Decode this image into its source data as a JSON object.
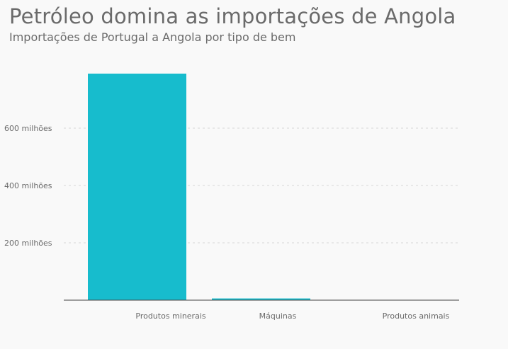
{
  "header": {
    "title": "Petróleo domina as importações de Angola",
    "subtitle": "Importações de Portugal a Angola por tipo de bem"
  },
  "colors": {
    "bar": "#17bccd",
    "grid": "#d8d8d8",
    "axis": "#444444",
    "text": "#6a6a6a",
    "background": "#f9f9f9"
  },
  "chart_data": {
    "type": "bar",
    "title": "Petróleo domina as importações de Angola",
    "subtitle": "Importações de Portugal a Angola por tipo de bem",
    "categories": [
      "Produtos minerais",
      "Máquinas",
      "Produtos animais"
    ],
    "values": [
      790000000,
      6000000,
      1000000
    ],
    "ylim": [
      0,
      790000000
    ],
    "yticks": [
      200000000,
      400000000,
      600000000
    ],
    "ytick_labels": [
      "200 milhões",
      "400 milhões",
      "600 milhões"
    ],
    "xlabel": "",
    "ylabel": "",
    "grid": true,
    "legend": "none"
  }
}
